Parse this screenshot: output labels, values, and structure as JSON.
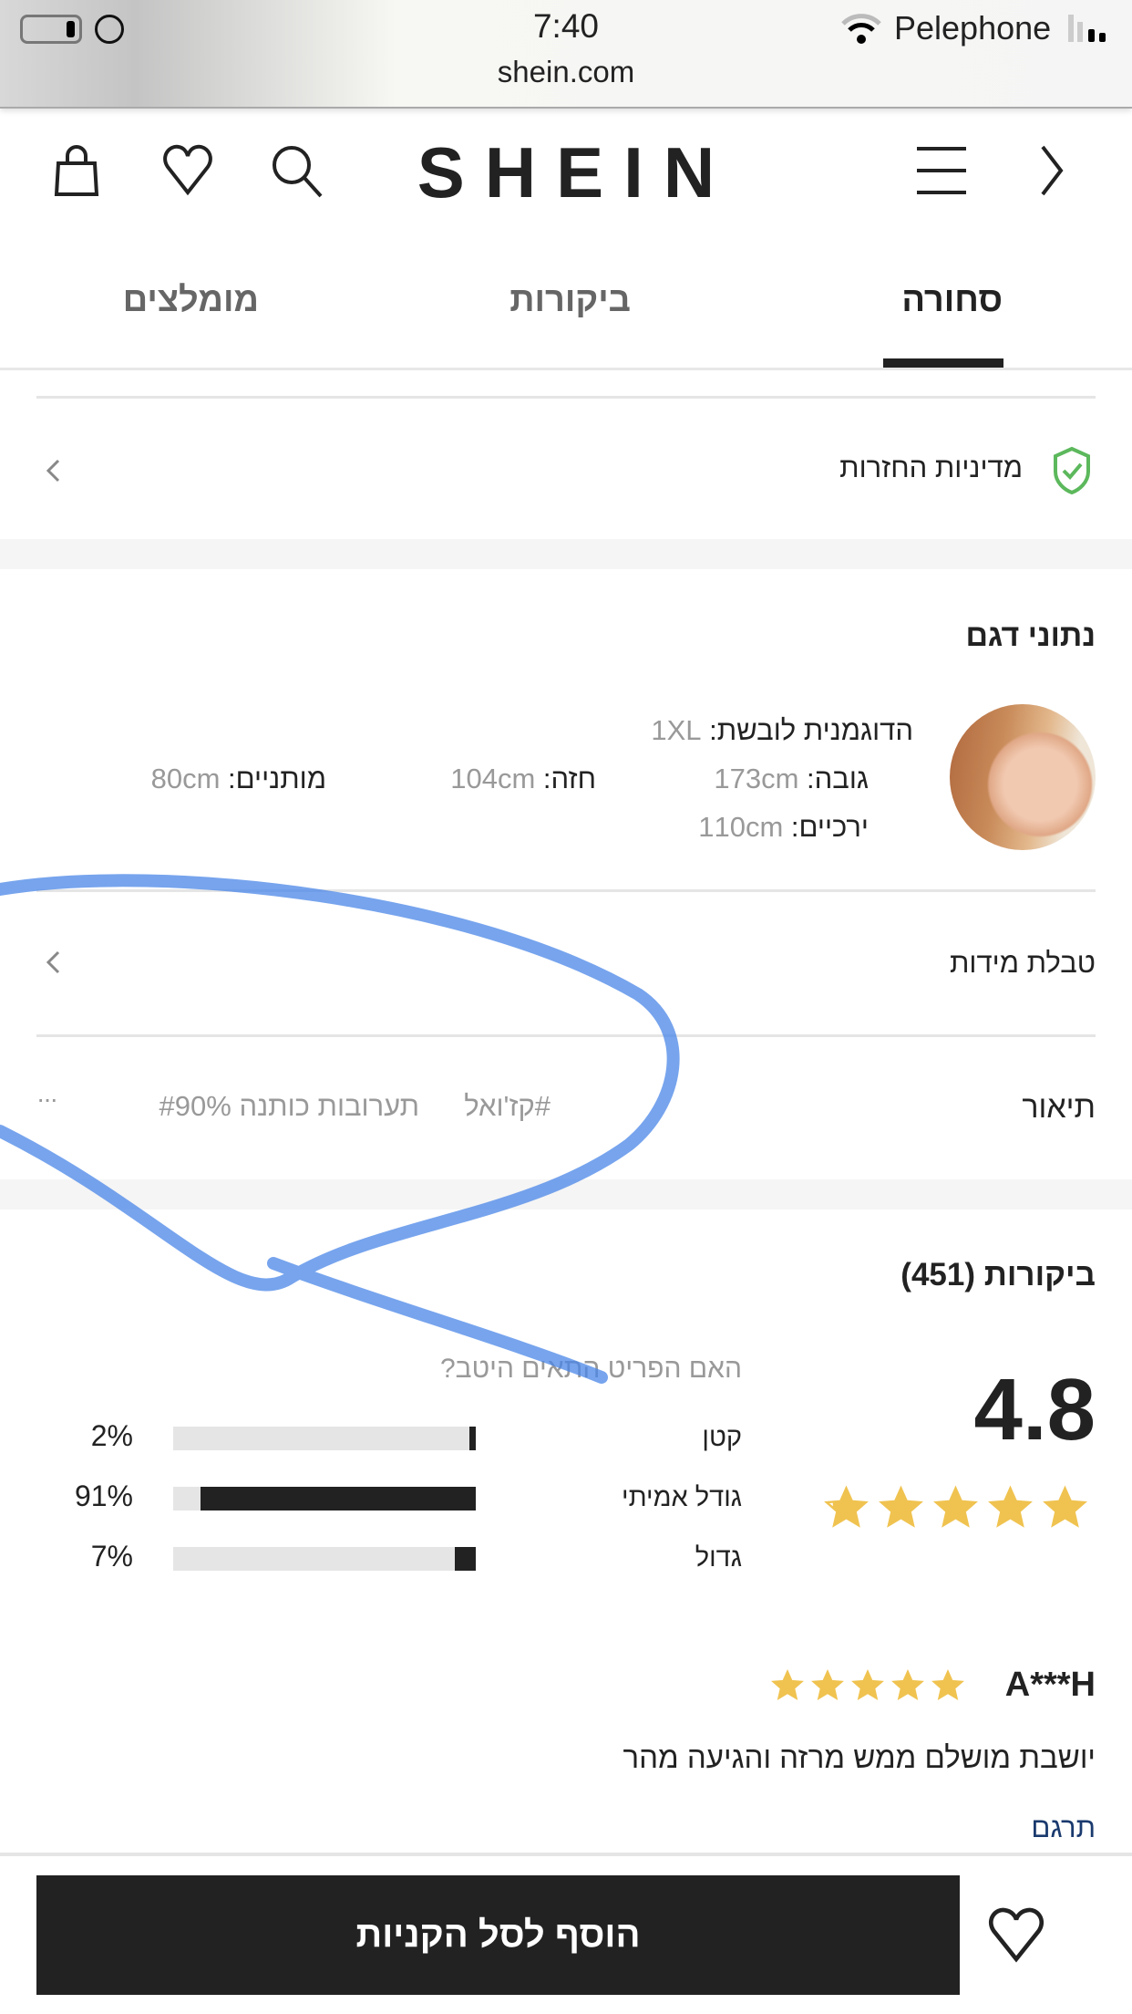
{
  "status_bar": {
    "time": "7:40",
    "url": "shein.com",
    "carrier": "Pelephone"
  },
  "header": {
    "logo": "SHEIN",
    "icons": [
      "bag-icon",
      "heart-icon",
      "search-icon",
      "menu-icon",
      "chevron-right-icon"
    ]
  },
  "tabs": [
    {
      "label": "סחורה",
      "active": true
    },
    {
      "label": "ביקורות",
      "active": false
    },
    {
      "label": "מומלצים",
      "active": false
    }
  ],
  "return_policy": {
    "label": "מדיניות החזרות",
    "icon": "shield-check-icon",
    "icon_color": "#5cb85c"
  },
  "model_data": {
    "title": "נתוני דגם",
    "wears_label": "הדוגמנית לובשת:",
    "wears_value": "1XL",
    "height_label": "גובה:",
    "height_value": "173cm",
    "bust_label": "חזה:",
    "bust_value": "104cm",
    "waist_label": "מותניים:",
    "waist_value": "80cm",
    "hips_label": "ירכיים:",
    "hips_value": "110cm"
  },
  "size_chart": {
    "label": "טבלת מידות"
  },
  "description": {
    "label": "תיאור",
    "tag1": "#קז'ואל",
    "tag2": "תערובות כותנה #90%",
    "more": "···"
  },
  "reviews": {
    "title": "ביקורות (451)",
    "rating": "4.8",
    "stars": 4.8,
    "star_color": "#f0c350",
    "fit_question": "האם הפריט התאים היטב?",
    "fit": [
      {
        "label": "קטן",
        "percent_label": "2%",
        "value": 2
      },
      {
        "label": "גודל אמיתי",
        "percent_label": "91%",
        "value": 91
      },
      {
        "label": "גדול",
        "percent_label": "7%",
        "value": 7
      }
    ],
    "review": {
      "author": "A***H",
      "stars": 5,
      "text": "יושבת מושלם ממש מרזה והגיעה מהר",
      "translate": "תרגם"
    }
  },
  "bottom_bar": {
    "add_to_cart": "הוסף לסל הקניות"
  },
  "colors": {
    "accent": "#222222",
    "link": "#1a3a6e",
    "annotation": "#4a86e8"
  }
}
